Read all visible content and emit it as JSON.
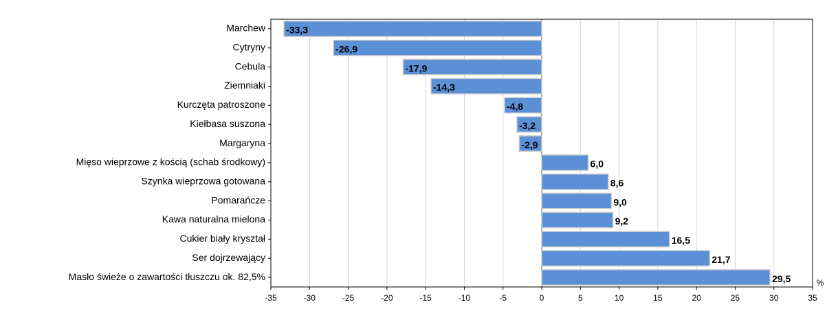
{
  "chart_data": {
    "type": "barh",
    "categories": [
      "Marchew",
      "Cytryny",
      "Cebula",
      "Ziemniaki",
      "Kurczęta patroszone",
      "Kiełbasa suszona",
      "Margaryna",
      "Mięso wieprzowe z kością (schab środkowy)",
      "Szynka wieprzowa gotowana",
      "Pomarańcze",
      "Kawa naturalna mielona",
      "Cukier biały kryształ",
      "Ser dojrzewający",
      "Masło świeże o zawartości tłuszczu ok. 82,5%"
    ],
    "values": [
      -33.3,
      -26.9,
      -17.9,
      -14.3,
      -4.8,
      -3.2,
      -2.9,
      6.0,
      8.6,
      9.0,
      9.2,
      16.5,
      21.7,
      29.5
    ],
    "value_labels": [
      "-33,3",
      "-26,9",
      "-17,9",
      "-14,3",
      "-4,8",
      "-3,2",
      "-2,9",
      "6,0",
      "8,6",
      "9,0",
      "9,2",
      "16,5",
      "21,7",
      "29,5"
    ],
    "color": "#5b8fd6",
    "xlim": [
      -35,
      35
    ],
    "xticks": [
      -35,
      -30,
      -25,
      -20,
      -15,
      -10,
      -5,
      0,
      5,
      10,
      15,
      20,
      25,
      30,
      35
    ],
    "x_unit": "%",
    "grid": true
  }
}
